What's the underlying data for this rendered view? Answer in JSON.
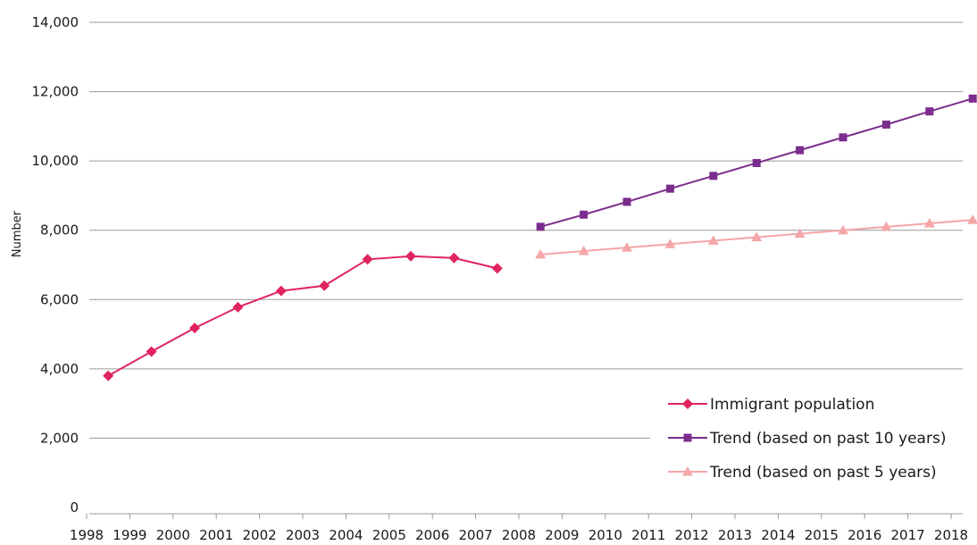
{
  "chart_data": {
    "type": "line",
    "title": "",
    "xlabel": "",
    "ylabel": "Number",
    "ylim": [
      0,
      14000
    ],
    "yticks": [
      0,
      2000,
      4000,
      6000,
      8000,
      10000,
      12000,
      14000
    ],
    "ytick_labels": [
      "0",
      "2,000",
      "4,000",
      "6,000",
      "8,000",
      "10,000",
      "12,000",
      "14,000"
    ],
    "x_categories": [
      "1998",
      "1999",
      "2000",
      "2001",
      "2002",
      "2003",
      "2004",
      "2005",
      "2006",
      "2007",
      "2008",
      "2009",
      "2010",
      "2011",
      "2012",
      "2013",
      "2014",
      "2015",
      "2016",
      "2017",
      "2018"
    ],
    "grid": true,
    "legend_position": "bottom-right",
    "series": [
      {
        "name": "Immigrant population",
        "color": "#e0245e",
        "marker": "diamond",
        "x": [
          "1998",
          "1999",
          "2000",
          "2001",
          "2002",
          "2003",
          "2004",
          "2005",
          "2006",
          "2007"
        ],
        "values": [
          3800,
          4500,
          5180,
          5780,
          6250,
          6400,
          7160,
          7250,
          7200,
          6900
        ]
      },
      {
        "name": "Trend (based on past 10 years)",
        "color": "#7b2d8e",
        "marker": "square",
        "x": [
          "2008",
          "2009",
          "2010",
          "2011",
          "2012",
          "2013",
          "2014",
          "2015",
          "2016",
          "2017",
          "2018"
        ],
        "values": [
          8100,
          8450,
          8820,
          9200,
          9570,
          9940,
          10310,
          10680,
          11050,
          11430,
          11800
        ]
      },
      {
        "name": "Trend (based on past 5 years)",
        "color": "#f4a6a8",
        "marker": "triangle",
        "x": [
          "2008",
          "2009",
          "2010",
          "2011",
          "2012",
          "2013",
          "2014",
          "2015",
          "2016",
          "2017",
          "2018"
        ],
        "values": [
          7300,
          7400,
          7500,
          7600,
          7700,
          7800,
          7900,
          8000,
          8100,
          8200,
          8300
        ]
      }
    ]
  }
}
